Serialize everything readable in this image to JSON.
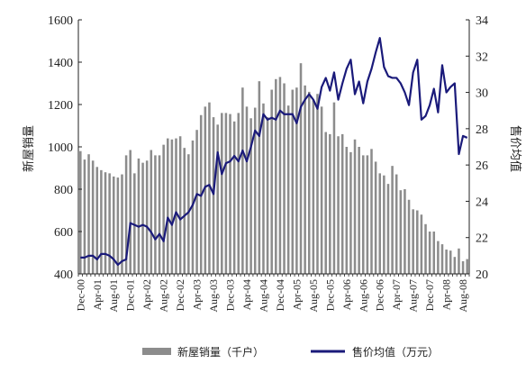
{
  "chart_data": {
    "type": "bar+line",
    "title": "",
    "xlabel": "",
    "ylabel_left": "新屋销量",
    "ylabel_right": "售价均值",
    "ylim_left": [
      400,
      1600
    ],
    "yticks_left": [
      "400",
      "600",
      "800",
      "1000",
      "1200",
      "1400",
      "1600"
    ],
    "ylim_right": [
      20,
      34
    ],
    "yticks_right": [
      "20",
      "22",
      "24",
      "26",
      "28",
      "30",
      "32",
      "34"
    ],
    "x_tick_labels": [
      "Dec-00",
      "Apr-01",
      "Aug-01",
      "Dec-01",
      "Apr-02",
      "Aug-02",
      "Dec-02",
      "Apr-03",
      "Aug-03",
      "Dec-03",
      "Apr-04",
      "Aug-04",
      "Dec-04",
      "Apr-05",
      "Aug-05",
      "Dec-05",
      "Apr-06",
      "Aug-06",
      "Dec-06",
      "Apr-07",
      "Aug-07",
      "Dec-07",
      "Apr-08",
      "Aug-08"
    ],
    "legend_position": "bottom",
    "colors": {
      "bar": "#8c8c8c",
      "line": "#1a1a7a",
      "axis": "#222222"
    },
    "series": [
      {
        "name": "新屋销量（千户）",
        "type": "bar",
        "axis": "left",
        "values": [
          980,
          940,
          965,
          935,
          905,
          890,
          880,
          875,
          860,
          855,
          870,
          960,
          985,
          875,
          945,
          925,
          935,
          985,
          960,
          960,
          1010,
          1040,
          1035,
          1040,
          1050,
          995,
          965,
          1030,
          1080,
          1150,
          1190,
          1210,
          1140,
          1105,
          1160,
          1160,
          1155,
          1120,
          1160,
          1280,
          1190,
          1135,
          1185,
          1310,
          1205,
          1140,
          1270,
          1320,
          1330,
          1300,
          1195,
          1270,
          1280,
          1395,
          1290,
          1260,
          1220,
          1250,
          1190,
          1070,
          1060,
          1210,
          1050,
          1060,
          1000,
          975,
          1035,
          1000,
          960,
          960,
          990,
          930,
          875,
          865,
          825,
          910,
          870,
          795,
          800,
          750,
          705,
          700,
          680,
          635,
          600,
          600,
          555,
          540,
          515,
          510,
          480,
          520,
          460,
          470
        ]
      },
      {
        "name": "售价均值（万元）",
        "type": "line",
        "axis": "right",
        "values": [
          20.9,
          20.9,
          21.0,
          21.0,
          20.8,
          21.1,
          21.1,
          21.0,
          20.8,
          20.5,
          20.7,
          20.8,
          22.8,
          22.7,
          22.6,
          22.7,
          22.6,
          22.3,
          21.9,
          22.2,
          21.8,
          23.1,
          22.7,
          23.4,
          23.0,
          23.2,
          23.4,
          23.8,
          24.4,
          24.3,
          24.8,
          24.9,
          24.4,
          26.7,
          25.5,
          26.1,
          26.2,
          26.5,
          26.2,
          26.8,
          26.2,
          27.0,
          27.9,
          27.6,
          28.8,
          28.5,
          28.6,
          28.5,
          29.0,
          28.8,
          28.8,
          28.8,
          28.3,
          29.2,
          29.6,
          29.9,
          29.6,
          29.1,
          30.3,
          30.8,
          30.1,
          31.1,
          29.6,
          30.5,
          31.3,
          31.8,
          29.9,
          30.6,
          29.4,
          30.6,
          31.3,
          32.2,
          33.0,
          31.4,
          30.9,
          30.8,
          30.8,
          30.5,
          30.0,
          29.3,
          31.1,
          31.8,
          28.5,
          28.7,
          29.3,
          30.2,
          28.9,
          31.5,
          30.0,
          30.3,
          30.5,
          26.6,
          27.6,
          27.5
        ]
      }
    ]
  }
}
